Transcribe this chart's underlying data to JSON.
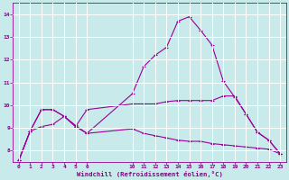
{
  "background_color": "#c8eaea",
  "grid_color": "#ffffff",
  "line_color": "#990099",
  "xlabel": "Windchill (Refroidissement éolien,°C)",
  "xlabel_color": "#880088",
  "ylim": [
    7.5,
    14.5
  ],
  "xlim": [
    -0.5,
    23.5
  ],
  "yticks": [
    8,
    9,
    10,
    11,
    12,
    13,
    14
  ],
  "xticks": [
    0,
    1,
    2,
    3,
    4,
    5,
    6,
    10,
    11,
    12,
    13,
    14,
    15,
    16,
    17,
    18,
    19,
    20,
    21,
    22,
    23
  ],
  "figsize": [
    3.2,
    2.0
  ],
  "dpi": 100,
  "series": [
    {
      "x": [
        0,
        1,
        2,
        3,
        4,
        5,
        6,
        10,
        11,
        12,
        13,
        14,
        15,
        16,
        17,
        18,
        19,
        20,
        21,
        22,
        23
      ],
      "y": [
        7.55,
        8.85,
        9.05,
        9.15,
        9.5,
        9.1,
        8.75,
        10.5,
        11.7,
        12.2,
        12.55,
        13.7,
        13.9,
        13.3,
        12.65,
        11.05,
        10.35,
        9.6,
        8.8,
        8.45,
        7.85
      ]
    },
    {
      "x": [
        0,
        1,
        2,
        3,
        4,
        5,
        6,
        10,
        11,
        12,
        13,
        14,
        15,
        16,
        17,
        18,
        19,
        20,
        21,
        22,
        23
      ],
      "y": [
        7.55,
        8.85,
        9.8,
        9.8,
        9.5,
        9.05,
        9.8,
        10.05,
        10.05,
        10.05,
        10.15,
        10.2,
        10.2,
        10.2,
        10.2,
        10.4,
        10.4,
        9.6,
        8.8,
        8.45,
        7.85
      ]
    },
    {
      "x": [
        0,
        1,
        2,
        3,
        4,
        5,
        6,
        10,
        11,
        12,
        13,
        14,
        15,
        16,
        17,
        18,
        19,
        20,
        21,
        22,
        23
      ],
      "y": [
        7.55,
        8.85,
        9.8,
        9.8,
        9.5,
        9.05,
        8.75,
        8.95,
        8.75,
        8.65,
        8.55,
        8.45,
        8.4,
        8.4,
        8.3,
        8.25,
        8.2,
        8.15,
        8.1,
        8.05,
        7.85
      ]
    }
  ]
}
